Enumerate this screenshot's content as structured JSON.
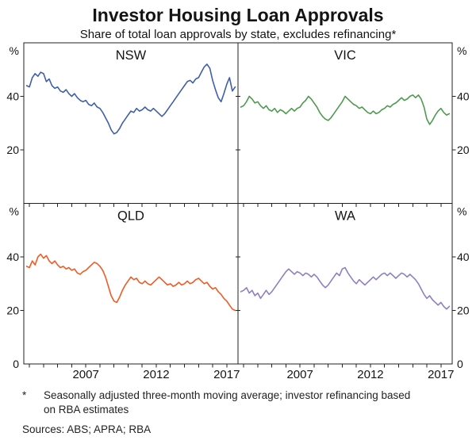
{
  "title": "Investor Housing Loan Approvals",
  "subtitle": "Share of total loan approvals by state, excludes refinancing*",
  "footnote_marker": "*",
  "footnote": "Seasonally adjusted three-month moving average; investor refinancing based on RBA estimates",
  "sources": "Sources: ABS; APRA; RBA",
  "chart_data": {
    "type": "line",
    "layout": "2x2-panels",
    "unit": "%",
    "x_range": [
      2002.6,
      2017.8
    ],
    "y_range": [
      0,
      60
    ],
    "y_ticks": [
      20,
      40
    ],
    "x_tick_labels": [
      2007,
      2012,
      2017
    ],
    "x_start": 2002.8,
    "x_step": 0.2,
    "axis_color": "#222222",
    "panels": [
      {
        "label": "NSW",
        "color": "#3f5fa9",
        "values": [
          44,
          43.5,
          47,
          48.5,
          47.5,
          49,
          48.5,
          45.5,
          46.5,
          44,
          43,
          43.5,
          42,
          41.5,
          42.5,
          41,
          40,
          41,
          39.5,
          38.5,
          38,
          38.5,
          37,
          36.5,
          37.5,
          36,
          35.5,
          34,
          32,
          30,
          27.5,
          26,
          26.5,
          28,
          30,
          31.5,
          33,
          34.5,
          34,
          35.5,
          34.5,
          35,
          36,
          35,
          34.5,
          35.5,
          34.5,
          33.5,
          32.5,
          33.5,
          35,
          36.5,
          38,
          39.5,
          41,
          42.5,
          44,
          45.5,
          46,
          45,
          46.5,
          47,
          49,
          51,
          52,
          50.5,
          46,
          42.5,
          39.5,
          38,
          41,
          44.5,
          47,
          42,
          43.5
        ]
      },
      {
        "label": "VIC",
        "color": "#4e9a4e",
        "values": [
          36,
          36.5,
          38,
          40,
          39,
          37.5,
          38,
          36.5,
          35.5,
          36.5,
          35,
          34.5,
          35.5,
          34,
          35,
          34.5,
          33.5,
          34.5,
          35.5,
          34.5,
          35.5,
          36,
          37.5,
          38.5,
          40,
          39,
          37.5,
          36,
          34,
          32.5,
          31.5,
          31,
          32,
          33.5,
          35,
          36.5,
          38,
          40,
          39,
          38,
          37,
          36.5,
          35.5,
          36,
          35,
          34,
          33.5,
          34.5,
          33.5,
          34,
          35,
          35.5,
          36.5,
          36,
          37,
          37.5,
          38.5,
          39.5,
          38.5,
          39,
          40,
          40.5,
          39.5,
          40.5,
          39,
          36,
          31.5,
          29.5,
          31,
          33,
          34.5,
          35.5,
          34,
          33,
          33.5
        ]
      },
      {
        "label": "QLD",
        "color": "#ef5b25",
        "values": [
          36.5,
          36,
          38.5,
          37,
          40,
          41,
          39.5,
          40.5,
          38.5,
          37.5,
          38.5,
          37,
          36,
          36.5,
          35.5,
          36,
          35,
          35.5,
          34,
          33.5,
          34.5,
          35,
          36,
          37,
          38,
          37.5,
          36.5,
          35,
          32.5,
          29,
          25.5,
          23.5,
          23,
          25,
          27.5,
          29.5,
          31,
          32.5,
          31.5,
          32,
          30.5,
          30,
          31,
          30,
          29.5,
          30.5,
          31.5,
          32.5,
          31.5,
          30.5,
          29.5,
          30,
          29,
          29.5,
          30.5,
          29.5,
          30,
          31,
          30,
          30.5,
          31.5,
          32,
          31,
          30,
          30.5,
          29,
          28,
          28.5,
          27,
          26,
          24.5,
          23.5,
          22,
          20.5,
          20
        ]
      },
      {
        "label": "WA",
        "color": "#8e7fc3",
        "values": [
          27,
          27.5,
          28.5,
          26.5,
          27.5,
          25.5,
          26.5,
          24.5,
          26,
          27.5,
          26,
          27,
          28.5,
          30,
          31.5,
          33,
          34.5,
          35.5,
          34.5,
          33.5,
          34.5,
          34,
          33,
          34,
          33.5,
          32.5,
          33.5,
          32.5,
          31,
          29.5,
          28.5,
          29.5,
          31,
          32.5,
          34,
          33,
          35.5,
          36,
          34,
          32.5,
          31,
          30,
          31.5,
          30.5,
          29.5,
          30.5,
          31.5,
          32.5,
          31.5,
          32.5,
          33.5,
          34,
          33,
          34,
          33,
          32,
          33,
          34,
          33.5,
          32.5,
          33.5,
          32.5,
          31.5,
          30,
          28,
          26,
          24.5,
          25.5,
          24,
          23,
          22,
          23,
          21.5,
          20.5,
          21.5
        ]
      }
    ]
  }
}
